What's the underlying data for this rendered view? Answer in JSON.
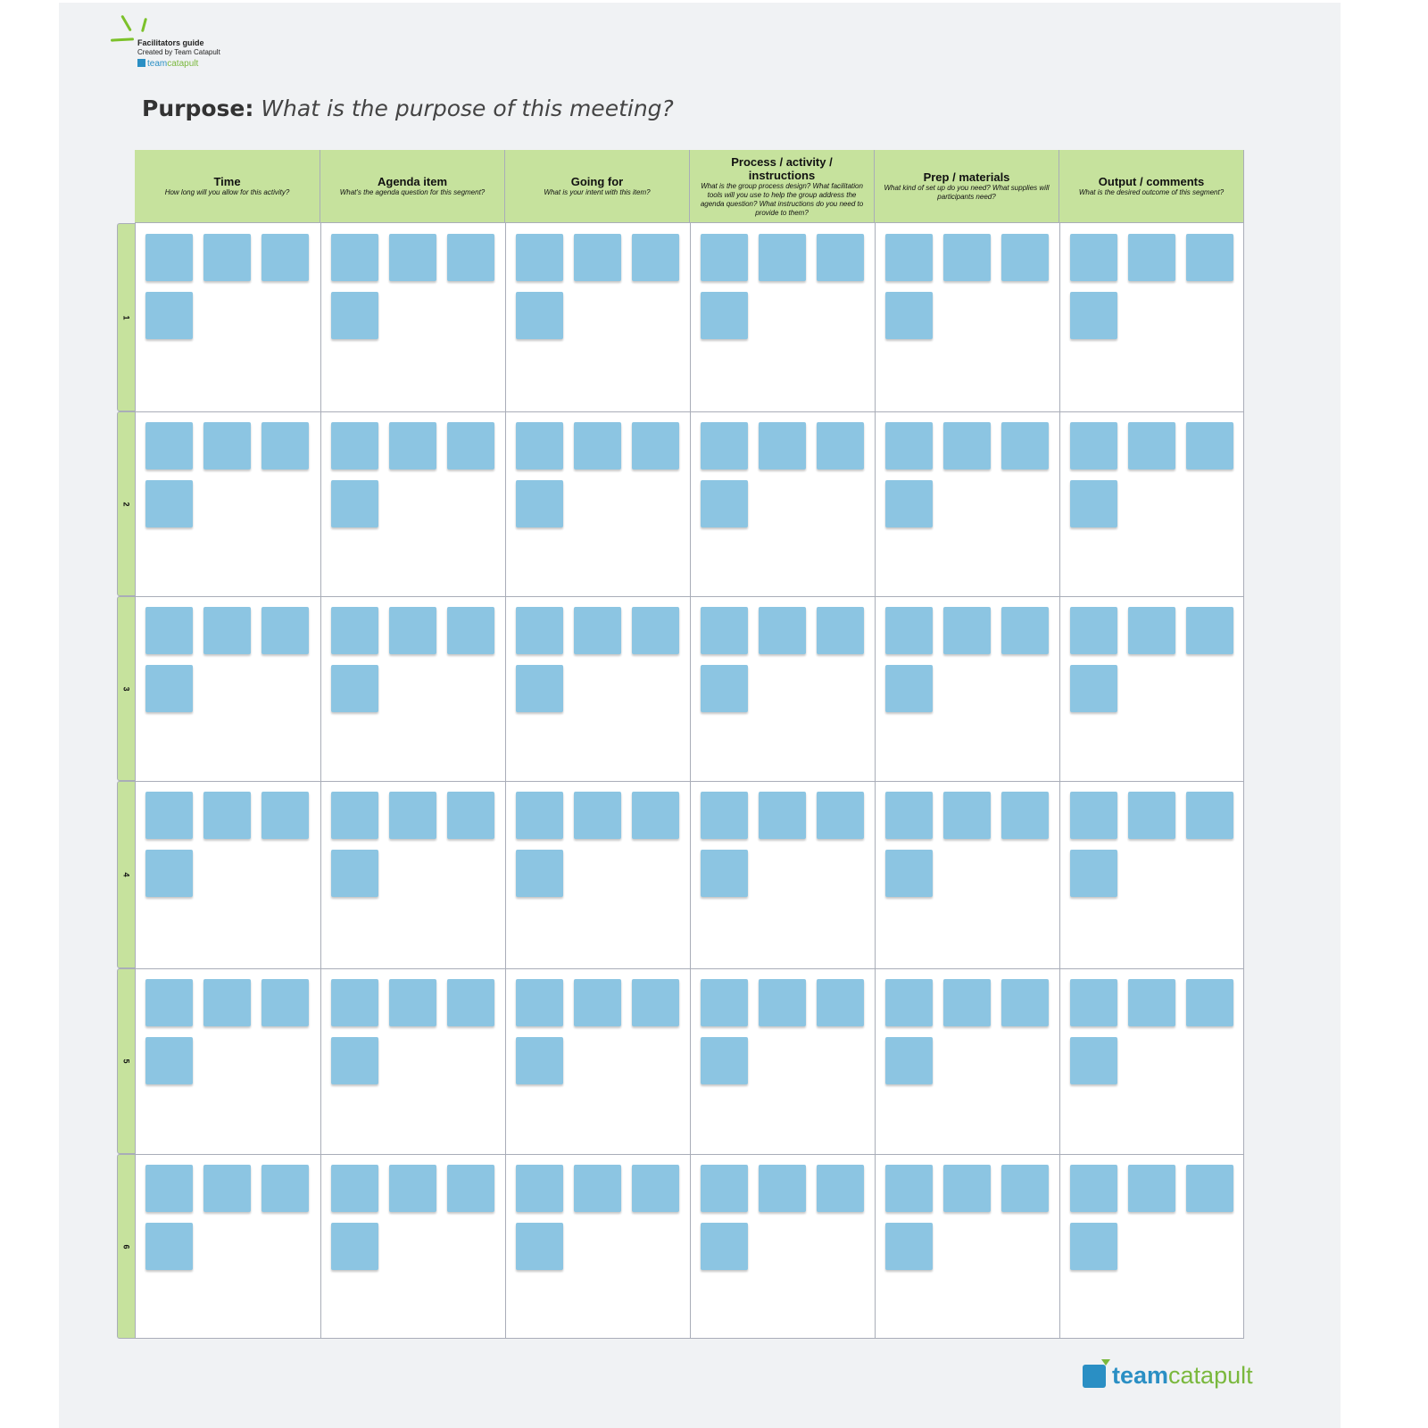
{
  "header": {
    "guide_title": "Facilitators guide",
    "guide_subtitle": "Created by Team Catapult",
    "brand_team": "team",
    "brand_catapult": "catapult"
  },
  "purpose": {
    "label": "Purpose:",
    "question": "What is the purpose of this meeting?"
  },
  "columns": [
    {
      "title": "Time",
      "subtitle": "How long will you allow for this activity?"
    },
    {
      "title": "Agenda item",
      "subtitle": "What's the agenda question for this segment?"
    },
    {
      "title": "Going for",
      "subtitle": "What is your intent with this item?"
    },
    {
      "title": "Process / activity / instructions",
      "subtitle": "What is the group process design? What facilitation tools will you use to help the group address the agenda question? What instructions do you need to provide to them?"
    },
    {
      "title": "Prep / materials",
      "subtitle": "What kind of set up do you need? What supplies will participants need?"
    },
    {
      "title": "Output / comments",
      "subtitle": "What is the desired outcome of this segment?"
    }
  ],
  "rows": [
    "1",
    "2",
    "3",
    "4",
    "5",
    "6"
  ],
  "sticky_notes_per_cell": 4,
  "colors": {
    "header_green": "#c6e29d",
    "sticky_blue": "#8cc5e2",
    "brand_blue": "#2a8fc4",
    "brand_green": "#7ab83d"
  },
  "footer": {
    "brand_team": "team",
    "brand_catapult": "catapult"
  }
}
